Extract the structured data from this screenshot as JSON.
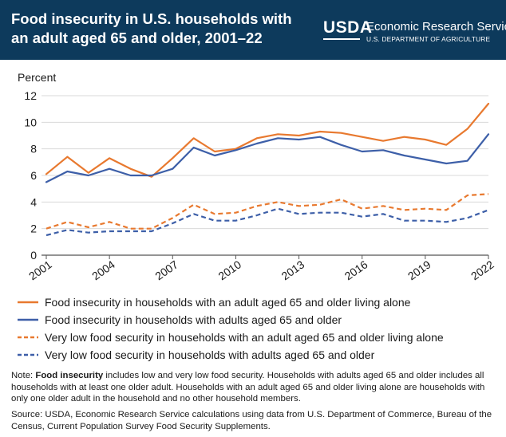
{
  "header": {
    "title": "Food insecurity in U.S. households with an adult aged 65 and older, 2001–22",
    "logo_text": "USDA",
    "agency": "Economic Research Service",
    "department": "U.S. DEPARTMENT OF AGRICULTURE"
  },
  "chart_data": {
    "type": "line",
    "ylabel": "Percent",
    "xlabel": "",
    "ylim": [
      0,
      12
    ],
    "yticks": [
      0,
      2,
      4,
      6,
      8,
      10,
      12
    ],
    "xlim": [
      2001,
      2022
    ],
    "xticks": [
      2001,
      2004,
      2007,
      2010,
      2013,
      2016,
      2019,
      2022
    ],
    "grid": "horizontal",
    "legend_position": "bottom",
    "x": [
      2001,
      2002,
      2003,
      2004,
      2005,
      2006,
      2007,
      2008,
      2009,
      2010,
      2011,
      2012,
      2013,
      2014,
      2015,
      2016,
      2017,
      2018,
      2019,
      2020,
      2021,
      2022
    ],
    "series": [
      {
        "name": "Food insecurity in households with an adult aged 65 and older living alone",
        "color": "#e8792f",
        "style": "solid",
        "values": [
          6.1,
          7.4,
          6.2,
          7.3,
          6.5,
          5.9,
          7.3,
          8.8,
          7.8,
          8.0,
          8.8,
          9.1,
          9.0,
          9.3,
          9.2,
          8.9,
          8.6,
          8.9,
          8.7,
          8.3,
          9.5,
          11.4
        ]
      },
      {
        "name": "Food insecurity in households with adults aged 65 and older",
        "color": "#3d5fa8",
        "style": "solid",
        "values": [
          5.5,
          6.3,
          6.0,
          6.5,
          6.0,
          6.0,
          6.5,
          8.1,
          7.5,
          7.9,
          8.4,
          8.8,
          8.7,
          8.9,
          8.3,
          7.8,
          7.9,
          7.5,
          7.2,
          6.9,
          7.1,
          9.1
        ]
      },
      {
        "name": "Very low food security in households with an adult aged 65 and older living alone",
        "color": "#e8792f",
        "style": "dashed",
        "values": [
          2.0,
          2.5,
          2.1,
          2.5,
          2.0,
          2.0,
          2.8,
          3.8,
          3.1,
          3.2,
          3.7,
          4.0,
          3.7,
          3.8,
          4.2,
          3.5,
          3.7,
          3.4,
          3.5,
          3.4,
          4.5,
          4.6
        ]
      },
      {
        "name": "Very low food security in households with adults aged 65 and older",
        "color": "#3d5fa8",
        "style": "dashed",
        "values": [
          1.5,
          1.9,
          1.7,
          1.8,
          1.8,
          1.8,
          2.4,
          3.1,
          2.6,
          2.6,
          3.0,
          3.5,
          3.1,
          3.2,
          3.2,
          2.9,
          3.1,
          2.6,
          2.6,
          2.5,
          2.8,
          3.4
        ]
      }
    ]
  },
  "note": {
    "prefix": "Note: ",
    "term": "Food insecurity",
    "body": " includes low and very low food security. Households with adults aged 65 and older includes all households with at least one older adult. Households with an adult aged 65 and older living alone are households with only one older adult in the household and no other household members."
  },
  "source": "Source: USDA, Economic Research Service calculations using data from U.S. Department of Commerce, Bureau of the Census, Current Population Survey Food Security Supplements.",
  "colors": {
    "header_bg": "#0d3a5c",
    "orange": "#e8792f",
    "blue": "#3d5fa8",
    "grid": "#d9d9d9"
  }
}
